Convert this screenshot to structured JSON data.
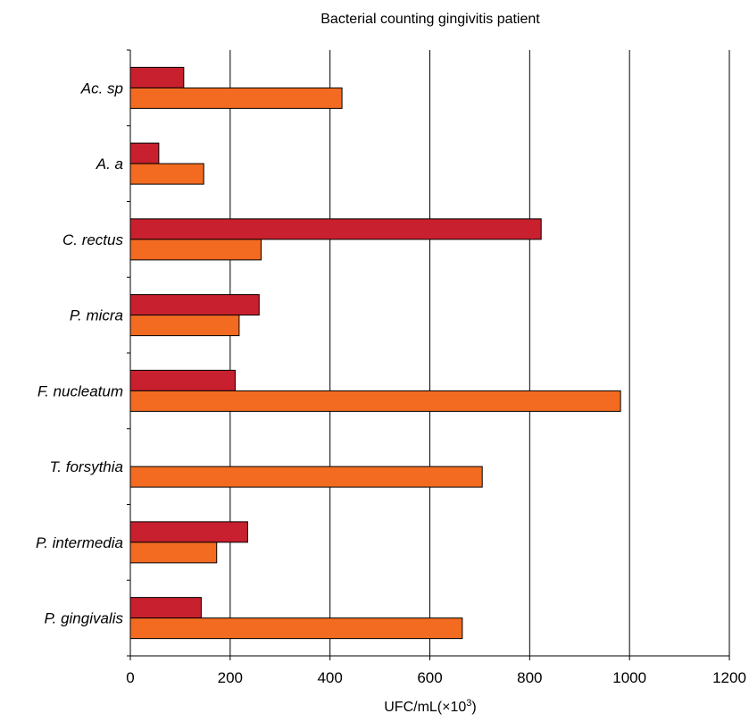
{
  "chart_data": {
    "type": "bar",
    "orientation": "horizontal",
    "title": "Bacterial counting gingivitis patient",
    "xlabel_prefix": "UFC/mL(×10",
    "xlabel_sup": "3",
    "xlabel_suffix": ")",
    "ylabel": "",
    "xlim": [
      0,
      1200
    ],
    "xticks": [
      0,
      200,
      400,
      600,
      800,
      1000,
      1200
    ],
    "xtick_labels": [
      "0",
      "200",
      "400",
      "600",
      "800",
      "1000",
      "1200"
    ],
    "grid": "vertical",
    "legend": "none",
    "categories": [
      "Ac. sp",
      "A. a",
      "C. rectus",
      "P. micra",
      "F. nucleatum",
      "T. forsythia",
      "P. intermedia",
      "P. gingivalis"
    ],
    "series": [
      {
        "color": "#c8202e",
        "values": [
          107,
          57,
          823,
          258,
          210,
          0,
          235,
          142
        ]
      },
      {
        "color": "#f26b21",
        "values": [
          424,
          147,
          262,
          218,
          982,
          705,
          173,
          665
        ]
      }
    ]
  }
}
